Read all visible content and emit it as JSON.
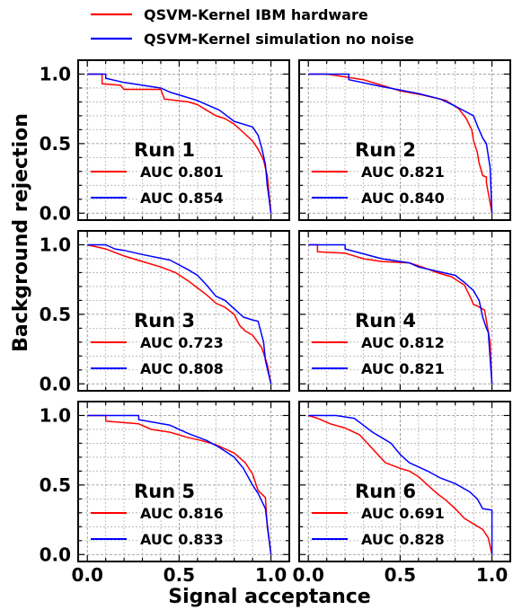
{
  "figure": {
    "xlabel": "Signal acceptance",
    "ylabel": "Background rejection"
  },
  "legend": {
    "placement": "top-center",
    "entries": [
      {
        "label": "QSVM-Kernel IBM hardware",
        "color": "#ff0000"
      },
      {
        "label": "QSVM-Kernel simulation no noise",
        "color": "#0000ff"
      }
    ]
  },
  "chart_data": [
    {
      "type": "line",
      "title": "Run 1",
      "xlim": [
        -0.05,
        1.1
      ],
      "ylim": [
        -0.05,
        1.1
      ],
      "xticks": [
        "0.0",
        "0.5",
        "1.0"
      ],
      "yticks": [
        "0.0",
        "0.5",
        "1.0"
      ],
      "grid": true,
      "series": [
        {
          "name": "AUC 0.801",
          "color": "#ff0000",
          "x": [
            0.0,
            0.08,
            0.08,
            0.18,
            0.2,
            0.4,
            0.42,
            0.55,
            0.6,
            0.65,
            0.7,
            0.75,
            0.8,
            0.85,
            0.9,
            0.93,
            0.95,
            0.96,
            0.98,
            1.0
          ],
          "y": [
            1.0,
            1.0,
            0.93,
            0.92,
            0.89,
            0.89,
            0.82,
            0.8,
            0.78,
            0.74,
            0.7,
            0.68,
            0.64,
            0.58,
            0.52,
            0.46,
            0.41,
            0.38,
            0.27,
            0.0
          ]
        },
        {
          "name": "AUC 0.854",
          "color": "#0000ff",
          "x": [
            0.0,
            0.1,
            0.1,
            0.2,
            0.4,
            0.45,
            0.6,
            0.72,
            0.8,
            0.9,
            0.93,
            0.95,
            0.97,
            0.98,
            1.0
          ],
          "y": [
            1.0,
            1.0,
            0.97,
            0.94,
            0.9,
            0.87,
            0.81,
            0.74,
            0.66,
            0.62,
            0.56,
            0.47,
            0.35,
            0.2,
            0.0
          ]
        }
      ]
    },
    {
      "type": "line",
      "title": "Run 2",
      "xlim": [
        -0.05,
        1.1
      ],
      "ylim": [
        -0.05,
        1.1
      ],
      "xticks": [
        "0.0",
        "0.5",
        "1.0"
      ],
      "yticks": [
        "0.0",
        "0.5",
        "1.0"
      ],
      "grid": true,
      "series": [
        {
          "name": "AUC 0.821",
          "color": "#ff0000",
          "x": [
            0.0,
            0.1,
            0.3,
            0.5,
            0.62,
            0.75,
            0.82,
            0.86,
            0.89,
            0.9,
            0.92,
            0.93,
            0.95,
            0.97,
            0.97,
            1.0
          ],
          "y": [
            1.0,
            1.0,
            0.96,
            0.88,
            0.85,
            0.81,
            0.75,
            0.68,
            0.6,
            0.52,
            0.44,
            0.36,
            0.27,
            0.26,
            0.22,
            0.0
          ]
        },
        {
          "name": "AUC 0.840",
          "color": "#0000ff",
          "x": [
            0.0,
            0.22,
            0.22,
            0.4,
            0.6,
            0.72,
            0.8,
            0.9,
            0.92,
            0.95,
            0.97,
            0.99,
            1.0
          ],
          "y": [
            1.0,
            1.0,
            0.96,
            0.91,
            0.86,
            0.82,
            0.77,
            0.7,
            0.63,
            0.54,
            0.5,
            0.33,
            0.0
          ]
        }
      ]
    },
    {
      "type": "line",
      "title": "Run 3",
      "xlim": [
        -0.05,
        1.1
      ],
      "ylim": [
        -0.05,
        1.1
      ],
      "xticks": [
        "0.0",
        "0.5",
        "1.0"
      ],
      "yticks": [
        "0.0",
        "0.5",
        "1.0"
      ],
      "grid": true,
      "series": [
        {
          "name": "AUC 0.723",
          "color": "#ff0000",
          "x": [
            0.0,
            0.1,
            0.2,
            0.3,
            0.4,
            0.48,
            0.55,
            0.6,
            0.65,
            0.7,
            0.75,
            0.8,
            0.83,
            0.86,
            0.9,
            0.95,
            0.98,
            1.0
          ],
          "y": [
            1.0,
            0.97,
            0.92,
            0.88,
            0.84,
            0.8,
            0.74,
            0.69,
            0.64,
            0.58,
            0.55,
            0.5,
            0.42,
            0.38,
            0.35,
            0.26,
            0.14,
            0.0
          ]
        },
        {
          "name": "AUC 0.808",
          "color": "#0000ff",
          "x": [
            0.0,
            0.1,
            0.15,
            0.2,
            0.3,
            0.45,
            0.55,
            0.6,
            0.65,
            0.7,
            0.75,
            0.8,
            0.85,
            0.9,
            0.93,
            0.96,
            0.97,
            1.0
          ],
          "y": [
            1.0,
            1.0,
            0.97,
            0.96,
            0.93,
            0.89,
            0.82,
            0.78,
            0.71,
            0.63,
            0.6,
            0.54,
            0.48,
            0.46,
            0.45,
            0.3,
            0.17,
            0.0
          ]
        }
      ]
    },
    {
      "type": "line",
      "title": "Run 4",
      "xlim": [
        -0.05,
        1.1
      ],
      "ylim": [
        -0.05,
        1.1
      ],
      "xticks": [
        "0.0",
        "0.5",
        "1.0"
      ],
      "yticks": [
        "0.0",
        "0.5",
        "1.0"
      ],
      "grid": true,
      "series": [
        {
          "name": "AUC 0.812",
          "color": "#ff0000",
          "x": [
            0.0,
            0.05,
            0.05,
            0.2,
            0.3,
            0.4,
            0.55,
            0.62,
            0.7,
            0.78,
            0.85,
            0.88,
            0.9,
            0.92,
            0.96,
            0.99,
            1.0
          ],
          "y": [
            1.0,
            1.0,
            0.95,
            0.94,
            0.9,
            0.88,
            0.87,
            0.84,
            0.8,
            0.77,
            0.71,
            0.63,
            0.57,
            0.56,
            0.53,
            0.3,
            0.0
          ]
        },
        {
          "name": "AUC 0.821",
          "color": "#0000ff",
          "x": [
            0.0,
            0.2,
            0.2,
            0.4,
            0.55,
            0.6,
            0.7,
            0.8,
            0.85,
            0.9,
            0.93,
            0.95,
            0.97,
            0.98,
            1.0
          ],
          "y": [
            1.0,
            1.0,
            0.97,
            0.9,
            0.87,
            0.84,
            0.81,
            0.78,
            0.73,
            0.67,
            0.6,
            0.48,
            0.4,
            0.37,
            0.0
          ]
        }
      ]
    },
    {
      "type": "line",
      "title": "Run 5",
      "xlim": [
        -0.05,
        1.1
      ],
      "ylim": [
        -0.05,
        1.1
      ],
      "xticks": [
        "0.0",
        "0.5",
        "1.0"
      ],
      "yticks": [
        "0.0",
        "0.5",
        "1.0"
      ],
      "grid": true,
      "series": [
        {
          "name": "AUC 0.816",
          "color": "#ff0000",
          "x": [
            0.0,
            0.1,
            0.1,
            0.28,
            0.35,
            0.45,
            0.55,
            0.62,
            0.7,
            0.8,
            0.86,
            0.9,
            0.93,
            0.97,
            0.98,
            1.0
          ],
          "y": [
            1.0,
            1.0,
            0.96,
            0.94,
            0.9,
            0.88,
            0.84,
            0.82,
            0.79,
            0.73,
            0.66,
            0.58,
            0.46,
            0.41,
            0.2,
            0.0
          ]
        },
        {
          "name": "AUC 0.833",
          "color": "#0000ff",
          "x": [
            0.0,
            0.28,
            0.28,
            0.45,
            0.55,
            0.65,
            0.72,
            0.8,
            0.85,
            0.9,
            0.93,
            0.97,
            1.0
          ],
          "y": [
            1.0,
            1.0,
            0.97,
            0.93,
            0.87,
            0.82,
            0.77,
            0.7,
            0.62,
            0.5,
            0.44,
            0.33,
            0.0
          ]
        }
      ]
    },
    {
      "type": "line",
      "title": "Run 6",
      "xlim": [
        -0.05,
        1.1
      ],
      "ylim": [
        -0.05,
        1.1
      ],
      "xticks": [
        "0.0",
        "0.5",
        "1.0"
      ],
      "yticks": [
        "0.0",
        "0.5",
        "1.0"
      ],
      "grid": true,
      "series": [
        {
          "name": "AUC 0.691",
          "color": "#ff0000",
          "x": [
            0.0,
            0.05,
            0.12,
            0.2,
            0.28,
            0.35,
            0.42,
            0.5,
            0.55,
            0.6,
            0.65,
            0.7,
            0.75,
            0.8,
            0.85,
            0.9,
            0.95,
            0.98,
            1.0
          ],
          "y": [
            1.0,
            0.98,
            0.94,
            0.91,
            0.86,
            0.76,
            0.66,
            0.62,
            0.6,
            0.56,
            0.5,
            0.44,
            0.39,
            0.33,
            0.26,
            0.22,
            0.18,
            0.12,
            0.0
          ]
        },
        {
          "name": "AUC 0.828",
          "color": "#0000ff",
          "x": [
            0.0,
            0.15,
            0.25,
            0.3,
            0.35,
            0.4,
            0.45,
            0.5,
            0.55,
            0.6,
            0.65,
            0.72,
            0.8,
            0.88,
            0.92,
            0.95,
            1.0,
            1.0
          ],
          "y": [
            1.0,
            1.0,
            0.98,
            0.93,
            0.88,
            0.84,
            0.8,
            0.72,
            0.66,
            0.63,
            0.6,
            0.55,
            0.51,
            0.45,
            0.4,
            0.33,
            0.32,
            0.0
          ]
        }
      ]
    }
  ]
}
